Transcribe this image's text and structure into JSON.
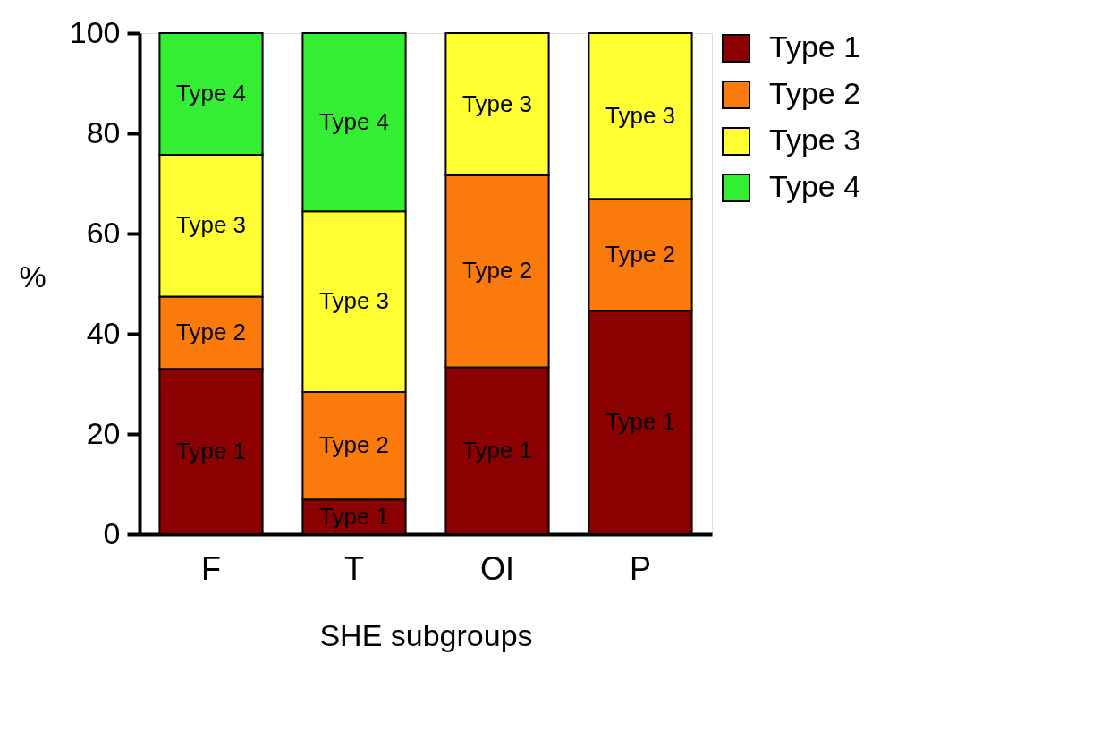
{
  "chart_data": {
    "type": "bar",
    "stacked": true,
    "xlabel": "SHE subgroups",
    "ylabel": "%",
    "categories": [
      "F",
      "T",
      "OI",
      "P"
    ],
    "series": [
      {
        "name": "Type 1",
        "color": "#8b0000",
        "values": [
          33.0,
          6.9,
          33.3,
          44.6
        ]
      },
      {
        "name": "Type 2",
        "color": "#fb7a0c",
        "values": [
          14.4,
          21.5,
          38.3,
          22.3
        ]
      },
      {
        "name": "Type 3",
        "color": "#ffff33",
        "values": [
          28.3,
          36.0,
          28.4,
          33.1
        ]
      },
      {
        "name": "Type 4",
        "color": "#33ee33",
        "values": [
          24.3,
          35.6,
          null,
          null
        ]
      }
    ],
    "ylim": [
      0,
      100
    ],
    "yticks": [
      0,
      20,
      40,
      60,
      80,
      100
    ],
    "grid": false,
    "legend": "top right"
  }
}
